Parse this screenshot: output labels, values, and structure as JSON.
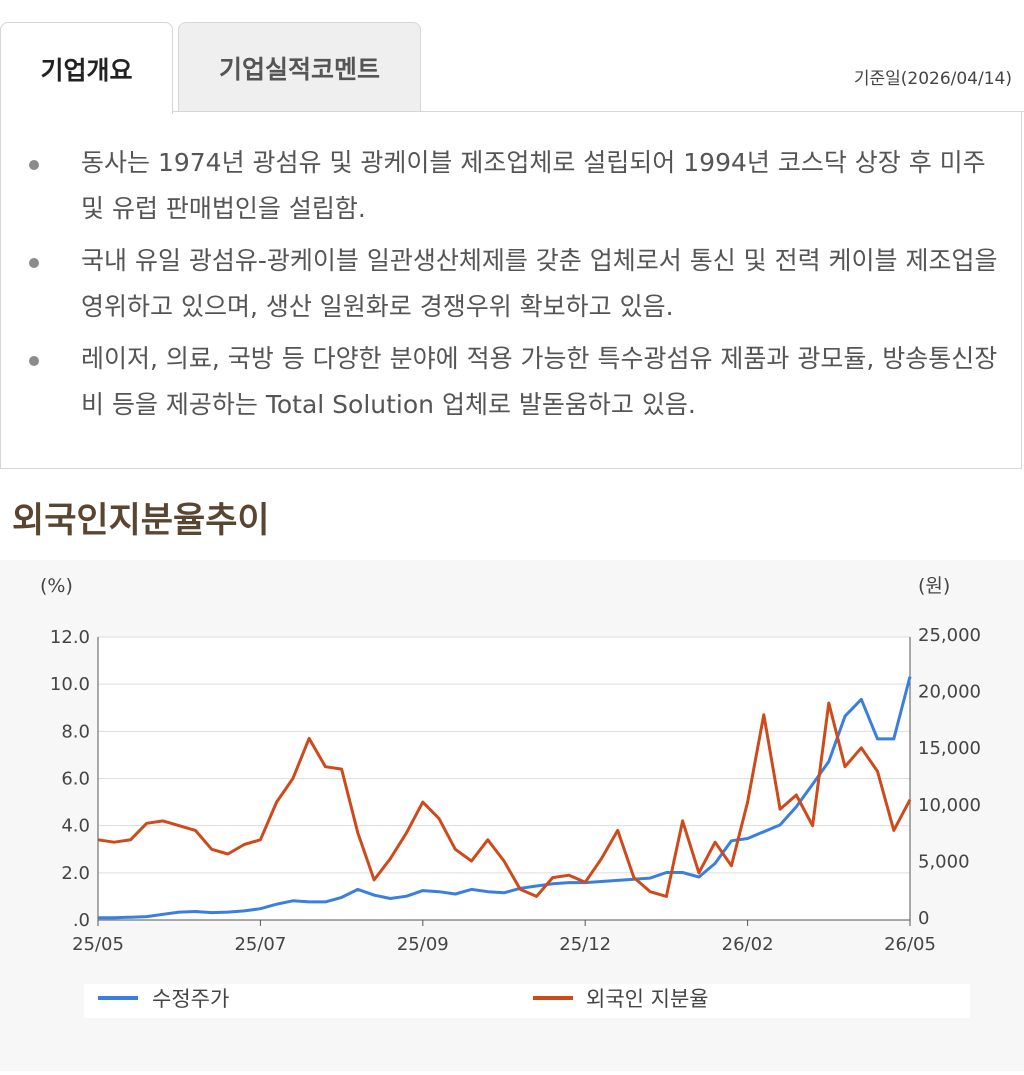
{
  "tabs": [
    {
      "label": "기업개요",
      "active": true
    },
    {
      "label": "기업실적코멘트",
      "active": false
    }
  ],
  "base_date": "기준일(2026/04/14)",
  "overview": {
    "items": [
      "동사는 1974년 광섬유 및 광케이블 제조업체로 설립되어 1994년 코스닥 상장 후 미주 및 유럽 판매법인을 설립함.",
      "국내 유일 광섬유-광케이블 일관생산체제를 갖춘 업체로서 통신 및 전력 케이블 제조업을 영위하고 있으며, 생산 일원화로 경쟁우위 확보하고 있음.",
      "레이저, 의료, 국방 등 다양한 분야에 적용 가능한 특수광섬유 제품과 광모듈, 방송통신장비 등을 제공하는 Total Solution 업체로 발돋움하고 있음."
    ]
  },
  "section_title": "외국인지분율추이",
  "chart_data": {
    "type": "line",
    "left_unit": "(%)",
    "right_unit": "(원)",
    "left_ticks": [
      "12.0",
      "10.0",
      "8.0",
      "6.0",
      "4.0",
      "2.0",
      ".0"
    ],
    "right_ticks": [
      "25,000",
      "20,000",
      "15,000",
      "10,000",
      "5,000",
      "0"
    ],
    "x_ticks": [
      "25/05",
      "25/07",
      "25/09",
      "25/12",
      "26/02",
      "26/05"
    ],
    "ylim_left": [
      0,
      12
    ],
    "ylim_right": [
      0,
      25000
    ],
    "grid": true,
    "legend_position": "bottom",
    "series": [
      {
        "name": "수정주가",
        "axis": "right",
        "color": "#3a7fe0",
        "x": [
          0,
          5,
          10,
          15,
          20,
          25,
          30,
          35,
          40,
          45,
          50,
          55,
          60,
          65,
          70,
          75,
          80,
          85,
          90,
          95,
          100,
          105,
          110,
          115,
          120,
          125,
          130,
          135,
          140,
          145,
          150,
          155,
          160,
          165,
          170,
          175,
          180,
          185,
          190,
          195,
          200,
          205,
          210,
          215,
          220,
          225,
          230,
          235,
          240,
          245,
          250
        ],
        "values": [
          200,
          200,
          250,
          300,
          500,
          700,
          750,
          650,
          700,
          800,
          1000,
          1400,
          1700,
          1600,
          1600,
          2000,
          2700,
          2200,
          1900,
          2100,
          2600,
          2500,
          2300,
          2700,
          2500,
          2400,
          2800,
          3000,
          3200,
          3300,
          3300,
          3400,
          3500,
          3600,
          3700,
          4200,
          4200,
          3800,
          5000,
          7000,
          7200,
          7800,
          8400,
          10000,
          12000,
          14000,
          18000,
          19500,
          16000,
          16000,
          21500
        ]
      },
      {
        "name": "외국인 지분율",
        "axis": "left",
        "color": "#cf4a1a",
        "x": [
          0,
          5,
          10,
          15,
          20,
          25,
          30,
          35,
          40,
          45,
          50,
          55,
          60,
          65,
          70,
          75,
          80,
          85,
          90,
          95,
          100,
          105,
          110,
          115,
          120,
          125,
          130,
          135,
          140,
          145,
          150,
          155,
          160,
          165,
          170,
          175,
          180,
          185,
          190,
          195,
          200,
          205,
          210,
          215,
          220,
          225,
          230,
          235,
          240,
          245,
          250
        ],
        "values": [
          3.4,
          3.3,
          3.4,
          4.1,
          4.2,
          4.0,
          3.8,
          3.0,
          2.8,
          3.2,
          3.4,
          5.0,
          6.0,
          7.7,
          6.5,
          6.4,
          3.7,
          1.7,
          2.6,
          3.7,
          5.0,
          4.3,
          3.0,
          2.5,
          3.4,
          2.5,
          1.3,
          1.0,
          1.8,
          1.9,
          1.6,
          2.6,
          3.8,
          1.8,
          1.2,
          1.0,
          4.2,
          2.0,
          3.3,
          2.3,
          5.0,
          8.7,
          4.7,
          5.3,
          4.0,
          9.2,
          6.5,
          7.3,
          6.3,
          3.8,
          5.1
        ]
      }
    ]
  }
}
